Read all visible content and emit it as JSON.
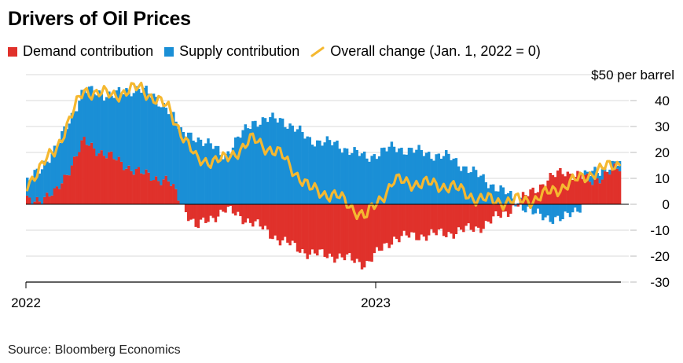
{
  "title": "Drivers of Oil Prices",
  "legend": {
    "demand": "Demand contribution",
    "supply": "Supply contribution",
    "overall": "Overall change (Jan. 1, 2022 = 0)"
  },
  "source": "Source: Bloomberg Economics",
  "colors": {
    "demand": "#e0312b",
    "supply": "#1a8fd6",
    "overall": "#f5b830",
    "grid": "#d9d9d9",
    "axis": "#000000"
  },
  "chart_data": {
    "type": "bar",
    "unit_label": "$50 per barrel",
    "x_tick_labels": [
      "2022",
      "2023"
    ],
    "y_ticks": [
      "40",
      "30",
      "20",
      "10",
      "0",
      "-10",
      "-20",
      "-30"
    ],
    "ylim": [
      -30,
      50
    ],
    "grid": true,
    "legend_placement": "top-left",
    "x": [
      "2022-01",
      "2022-02",
      "2022-03",
      "2022-04",
      "2022-05",
      "2022-06",
      "2022-07",
      "2022-08",
      "2022-09",
      "2022-10",
      "2022-11",
      "2022-12",
      "2023-01",
      "2023-02",
      "2023-03",
      "2023-04",
      "2023-05",
      "2023-06",
      "2023-07",
      "2023-08",
      "2023-09",
      "2023-10"
    ],
    "series": [
      {
        "name": "Demand contribution",
        "type": "bar",
        "values": [
          1,
          4,
          24,
          18,
          12,
          9,
          -9,
          -2,
          -7,
          -14,
          -19,
          -20,
          -23,
          -13,
          -12,
          -11,
          -9,
          -3,
          6,
          13,
          9,
          14
        ]
      },
      {
        "name": "Supply contribution",
        "type": "bar",
        "values": [
          7,
          17,
          20,
          24,
          33,
          28,
          26,
          19,
          32,
          33,
          25,
          23,
          18,
          22,
          20,
          18,
          11,
          4,
          -4,
          -6,
          3,
          2
        ]
      },
      {
        "name": "Overall change (Jan. 1, 2022 = 0)",
        "type": "line",
        "values": [
          8,
          21,
          44,
          42,
          45,
          37,
          17,
          17,
          25,
          19,
          6,
          3,
          -5,
          9,
          8,
          7,
          2,
          1,
          2,
          7,
          12,
          16
        ]
      }
    ]
  }
}
